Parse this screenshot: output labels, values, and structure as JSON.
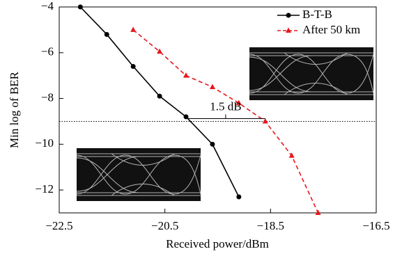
{
  "chart_data": {
    "type": "line",
    "x_label": "Received power/dBm",
    "y_label": "Min log of BER",
    "xlim": [
      -22.5,
      -16.5
    ],
    "xticks": [
      {
        "value": -22.5,
        "label": "−22.5"
      },
      {
        "value": -20.5,
        "label": "−20.5"
      },
      {
        "value": -18.5,
        "label": "−18.5"
      },
      {
        "value": -16.5,
        "label": "−16.5"
      }
    ],
    "ylim": [
      -13,
      -4
    ],
    "yticks": [
      {
        "value": -4,
        "label": "−4"
      },
      {
        "value": -6,
        "label": "−6"
      },
      {
        "value": -8,
        "label": "−8"
      },
      {
        "value": -10,
        "label": "−10"
      },
      {
        "value": -12,
        "label": "−12"
      }
    ],
    "reference_line": -9,
    "annotation": "1.5 dB",
    "legend": "upper right",
    "series": [
      {
        "name": "B-T-B",
        "color": "#000000",
        "dash": false,
        "marker": "circle",
        "x": [
          -22.1,
          -21.6,
          -21.1,
          -20.6,
          -20.1,
          -19.6,
          -19.1
        ],
        "values": [
          -4,
          -5.2,
          -6.6,
          -7.9,
          -8.8,
          -10,
          -12.3
        ]
      },
      {
        "name": "After 50 km",
        "color": "#e8161b",
        "dash": true,
        "marker": "triangle",
        "x": [
          -21.1,
          -20.6,
          -20.1,
          -19.6,
          -19.1,
          -18.6,
          -18.1,
          -17.6
        ],
        "values": [
          -5,
          -5.95,
          -7,
          -7.5,
          -8.2,
          -9,
          -10.5,
          -13
        ]
      }
    ]
  }
}
